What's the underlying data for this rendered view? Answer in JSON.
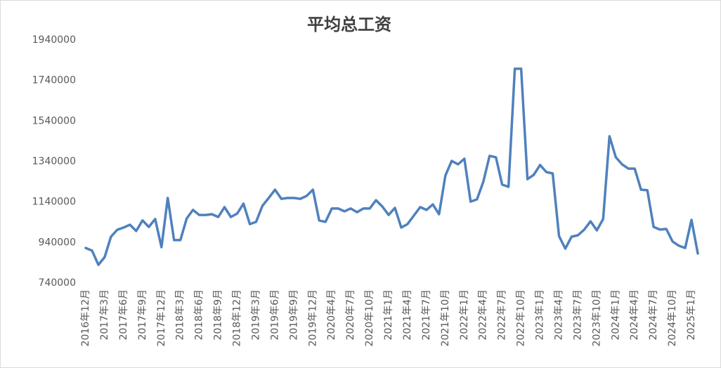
{
  "chart_data": {
    "type": "line",
    "title": "平均总工资",
    "categories": [
      "2016年12月",
      null,
      null,
      "2017年3月",
      null,
      null,
      "2017年6月",
      null,
      null,
      "2017年9月",
      null,
      null,
      "2017年12月",
      null,
      null,
      "2018年3月",
      null,
      null,
      "2018年6月",
      null,
      null,
      "2018年9月",
      null,
      null,
      "2018年12月",
      null,
      null,
      "2019年3月",
      null,
      null,
      "2019年6月",
      null,
      null,
      "2019年9月",
      null,
      null,
      "2019年12月",
      null,
      null,
      "2020年4月",
      null,
      null,
      "2020年7月",
      null,
      null,
      "2020年10月",
      null,
      null,
      "2021年1月",
      null,
      null,
      "2021年4月",
      null,
      null,
      "2021年7月",
      null,
      null,
      "2021年10月",
      null,
      null,
      "2022年1月",
      null,
      null,
      "2022年4月",
      null,
      null,
      "2022年7月",
      null,
      null,
      "2022年10月",
      null,
      null,
      "2023年1月",
      null,
      null,
      "2023年4月",
      null,
      null,
      "2023年7月",
      null,
      null,
      "2023年10月",
      null,
      null,
      "2024年1月",
      null,
      null,
      "2024年4月",
      null,
      null,
      "2024年7月",
      null,
      null,
      "2024年10月",
      null,
      null,
      "2025年1月",
      null
    ],
    "values": [
      913000,
      900000,
      830000,
      868000,
      969000,
      1003000,
      1014000,
      1028000,
      997000,
      1049000,
      1017000,
      1056000,
      917000,
      1160000,
      952000,
      952000,
      1059000,
      1101000,
      1076000,
      1076000,
      1080000,
      1066000,
      1115000,
      1066000,
      1083000,
      1132000,
      1031000,
      1042000,
      1121000,
      1160000,
      1201000,
      1156000,
      1160000,
      1160000,
      1156000,
      1170000,
      1201000,
      1049000,
      1042000,
      1108000,
      1108000,
      1094000,
      1108000,
      1090000,
      1108000,
      1108000,
      1149000,
      1118000,
      1076000,
      1111000,
      1014000,
      1031000,
      1073000,
      1115000,
      1101000,
      1128000,
      1080000,
      1271000,
      1343000,
      1326000,
      1354000,
      1142000,
      1153000,
      1239000,
      1368000,
      1361000,
      1226000,
      1215000,
      1798000,
      1798000,
      1253000,
      1274000,
      1323000,
      1288000,
      1281000,
      972000,
      910000,
      969000,
      976000,
      1004000,
      1045000,
      1000000,
      1056000,
      1465000,
      1361000,
      1326000,
      1305000,
      1305000,
      1201000,
      1198000,
      1017000,
      1004000,
      1007000,
      945000,
      924000,
      913000,
      1052000,
      886000
    ],
    "color": "#4f81bd",
    "ylim": [
      740000,
      1940000
    ],
    "yticks": [
      740000,
      940000,
      1140000,
      1340000,
      1540000,
      1740000,
      1940000
    ],
    "grid": false
  }
}
